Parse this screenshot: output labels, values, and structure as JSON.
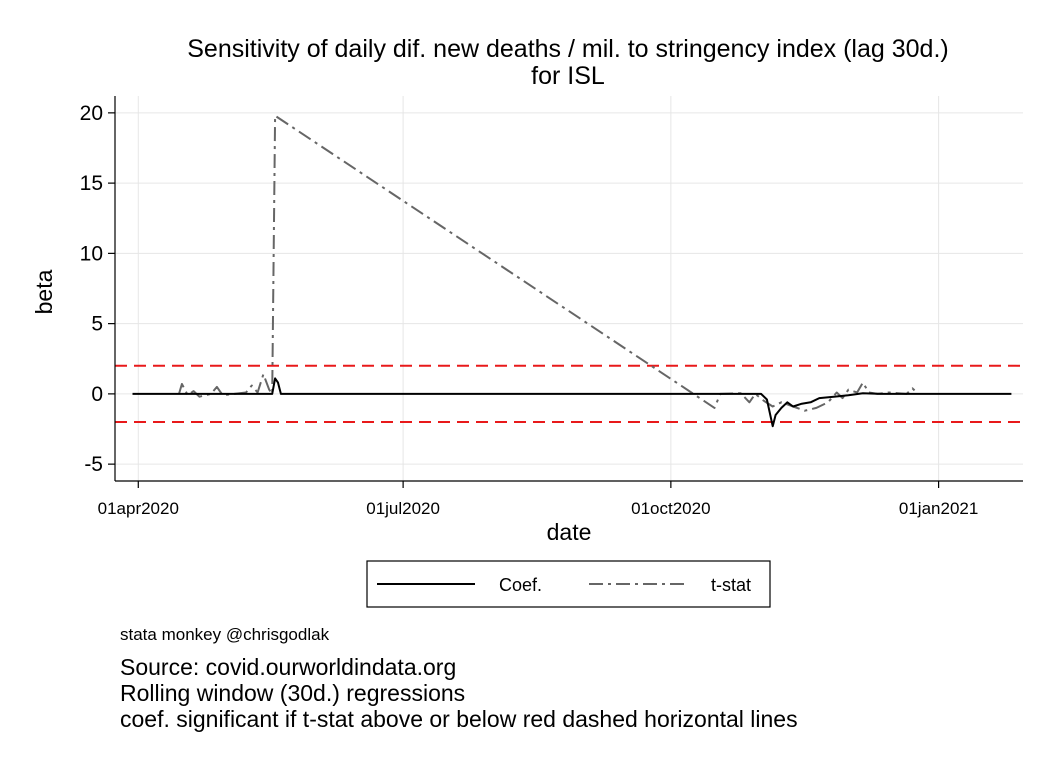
{
  "chart_data": {
    "type": "line",
    "title": [
      "Sensitivity of daily dif. new deaths / mil. to stringency index (lag 30d.)",
      "for ISL"
    ],
    "xlabel": "date",
    "ylabel": "beta",
    "xlim": [
      "2020-03-24",
      "2021-01-30"
    ],
    "ylim": [
      -6.2,
      21.2
    ],
    "yticks": [
      -5,
      0,
      5,
      10,
      15,
      20
    ],
    "ytick_labels": [
      "-5",
      "0",
      "5",
      "10",
      "15",
      "20"
    ],
    "xticks": [
      "2020-04-01",
      "2020-07-01",
      "2020-10-01",
      "2021-01-01"
    ],
    "xtick_labels": [
      "01apr2020",
      "01jul2020",
      "01oct2020",
      "01jan2021"
    ],
    "grid": true,
    "hlines": [
      {
        "y": 2,
        "color": "#e8191a",
        "style": "dashed"
      },
      {
        "y": -2,
        "color": "#e8191a",
        "style": "dashed"
      }
    ],
    "legend": {
      "position": "bottom",
      "entries": [
        "Coef.",
        "t-stat"
      ]
    },
    "series": [
      {
        "name": "Coef.",
        "color": "#000000",
        "style": "solid",
        "points": [
          [
            "2020-03-30",
            0
          ],
          [
            "2020-05-17",
            0
          ],
          [
            "2020-05-18",
            1.1
          ],
          [
            "2020-05-19",
            0.8
          ],
          [
            "2020-05-20",
            0
          ],
          [
            "2020-11-01",
            0
          ],
          [
            "2020-11-03",
            -0.4
          ],
          [
            "2020-11-05",
            -2.3
          ],
          [
            "2020-11-06",
            -1.5
          ],
          [
            "2020-11-08",
            -1.0
          ],
          [
            "2020-11-10",
            -0.6
          ],
          [
            "2020-11-12",
            -0.9
          ],
          [
            "2020-11-15",
            -0.7
          ],
          [
            "2020-11-18",
            -0.6
          ],
          [
            "2020-11-21",
            -0.3
          ],
          [
            "2020-11-26",
            -0.2
          ],
          [
            "2020-12-01",
            -0.1
          ],
          [
            "2020-12-06",
            0.05
          ],
          [
            "2020-12-12",
            0
          ],
          [
            "2021-01-26",
            0
          ]
        ]
      },
      {
        "name": "t-stat",
        "color": "#666666",
        "style": "dashdot",
        "points": [
          [
            "2020-04-15",
            0
          ],
          [
            "2020-04-16",
            0.7
          ],
          [
            "2020-04-18",
            -0.1
          ],
          [
            "2020-04-20",
            0.2
          ],
          [
            "2020-04-22",
            -0.2
          ],
          [
            "2020-04-26",
            0
          ],
          [
            "2020-04-28",
            0.5
          ],
          [
            "2020-04-30",
            -0.1
          ],
          [
            "2020-05-04",
            0
          ],
          [
            "2020-05-08",
            0.1
          ],
          [
            "2020-05-10",
            0.6
          ],
          [
            "2020-05-12",
            0.1
          ],
          [
            "2020-05-14",
            1.4
          ],
          [
            "2020-05-16",
            0.3
          ],
          [
            "2020-05-17",
            0
          ],
          [
            "2020-05-18",
            19.8
          ],
          [
            "2020-10-16",
            -1.0
          ],
          [
            "2020-10-18",
            0
          ],
          [
            "2020-10-25",
            0.05
          ],
          [
            "2020-10-28",
            -0.6
          ],
          [
            "2020-10-30",
            0
          ],
          [
            "2020-11-02",
            -0.5
          ],
          [
            "2020-11-05",
            -0.9
          ],
          [
            "2020-11-08",
            -0.6
          ],
          [
            "2020-11-12",
            -0.9
          ],
          [
            "2020-11-16",
            -1.2
          ],
          [
            "2020-11-20",
            -1.0
          ],
          [
            "2020-11-24",
            -0.6
          ],
          [
            "2020-11-27",
            0.1
          ],
          [
            "2020-11-29",
            -0.3
          ],
          [
            "2020-12-01",
            0.3
          ],
          [
            "2020-12-04",
            0.1
          ],
          [
            "2020-12-06",
            0.8
          ],
          [
            "2020-12-08",
            0.1
          ],
          [
            "2020-12-11",
            0
          ],
          [
            "2020-12-15",
            0.1
          ],
          [
            "2020-12-18",
            0.05
          ],
          [
            "2020-12-21",
            0
          ],
          [
            "2020-12-23",
            0.4
          ],
          [
            "2020-12-25",
            0
          ]
        ]
      }
    ]
  },
  "footer": {
    "credit": "stata monkey @chrisgodlak",
    "notes": [
      "Source: covid.ourworldindata.org",
      "Rolling window (30d.) regressions",
      "coef. significant if t-stat above or below red dashed horizontal lines"
    ]
  }
}
